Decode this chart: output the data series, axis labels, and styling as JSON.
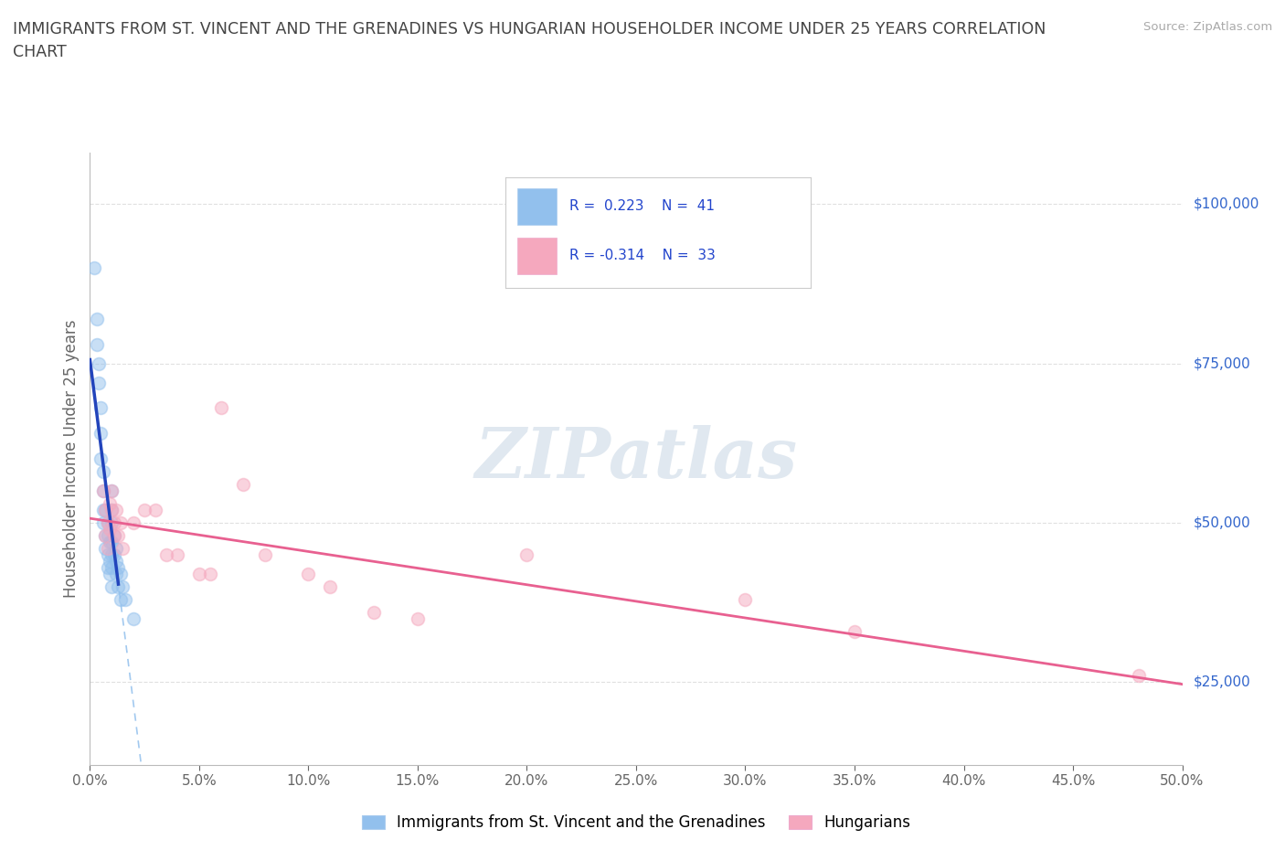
{
  "title_line1": "IMMIGRANTS FROM ST. VINCENT AND THE GRENADINES VS HUNGARIAN HOUSEHOLDER INCOME UNDER 25 YEARS CORRELATION",
  "title_line2": "CHART",
  "source_text": "Source: ZipAtlas.com",
  "ylabel": "Householder Income Under 25 years",
  "xlim": [
    0.0,
    0.5
  ],
  "ylim": [
    12000,
    108000
  ],
  "yticks": [
    25000,
    50000,
    75000,
    100000
  ],
  "ytick_labels": [
    "$25,000",
    "$50,000",
    "$75,000",
    "$100,000"
  ],
  "xtick_count": 11,
  "R_blue": 0.223,
  "N_blue": 41,
  "R_pink": -0.314,
  "N_pink": 33,
  "blue_color": "#92c0ed",
  "pink_color": "#f5a8be",
  "blue_line_color": "#2244bb",
  "blue_dashed_color": "#92c0ed",
  "pink_line_color": "#e86090",
  "grid_color": "#e0e0e0",
  "title_color": "#444444",
  "label_color": "#666666",
  "source_color": "#aaaaaa",
  "watermark_color": "#e0e8f0",
  "legend_label_blue": "Immigrants from St. Vincent and the Grenadines",
  "legend_label_pink": "Hungarians",
  "blue_scatter_x": [
    0.002,
    0.003,
    0.003,
    0.004,
    0.004,
    0.005,
    0.005,
    0.005,
    0.006,
    0.006,
    0.006,
    0.006,
    0.007,
    0.007,
    0.007,
    0.008,
    0.008,
    0.008,
    0.008,
    0.009,
    0.009,
    0.009,
    0.01,
    0.01,
    0.01,
    0.01,
    0.01,
    0.01,
    0.01,
    0.011,
    0.011,
    0.012,
    0.012,
    0.012,
    0.013,
    0.013,
    0.014,
    0.014,
    0.015,
    0.016,
    0.02
  ],
  "blue_scatter_y": [
    90000,
    82000,
    78000,
    75000,
    72000,
    68000,
    64000,
    60000,
    58000,
    55000,
    52000,
    50000,
    52000,
    48000,
    46000,
    50000,
    48000,
    45000,
    43000,
    47000,
    44000,
    42000,
    55000,
    52000,
    50000,
    47000,
    45000,
    43000,
    40000,
    48000,
    45000,
    46000,
    44000,
    42000,
    43000,
    40000,
    42000,
    38000,
    40000,
    38000,
    35000
  ],
  "pink_scatter_x": [
    0.006,
    0.007,
    0.007,
    0.008,
    0.008,
    0.009,
    0.009,
    0.01,
    0.01,
    0.011,
    0.011,
    0.012,
    0.013,
    0.014,
    0.015,
    0.02,
    0.025,
    0.03,
    0.035,
    0.04,
    0.05,
    0.055,
    0.06,
    0.07,
    0.08,
    0.1,
    0.11,
    0.13,
    0.15,
    0.2,
    0.3,
    0.35,
    0.48
  ],
  "pink_scatter_y": [
    55000,
    52000,
    48000,
    50000,
    46000,
    53000,
    49000,
    55000,
    52000,
    50000,
    48000,
    52000,
    48000,
    50000,
    46000,
    50000,
    52000,
    52000,
    45000,
    45000,
    42000,
    42000,
    68000,
    56000,
    45000,
    42000,
    40000,
    36000,
    35000,
    45000,
    38000,
    33000,
    26000
  ],
  "marker_size": 100,
  "marker_alpha": 0.5,
  "marker_edge_alpha": 0.7
}
